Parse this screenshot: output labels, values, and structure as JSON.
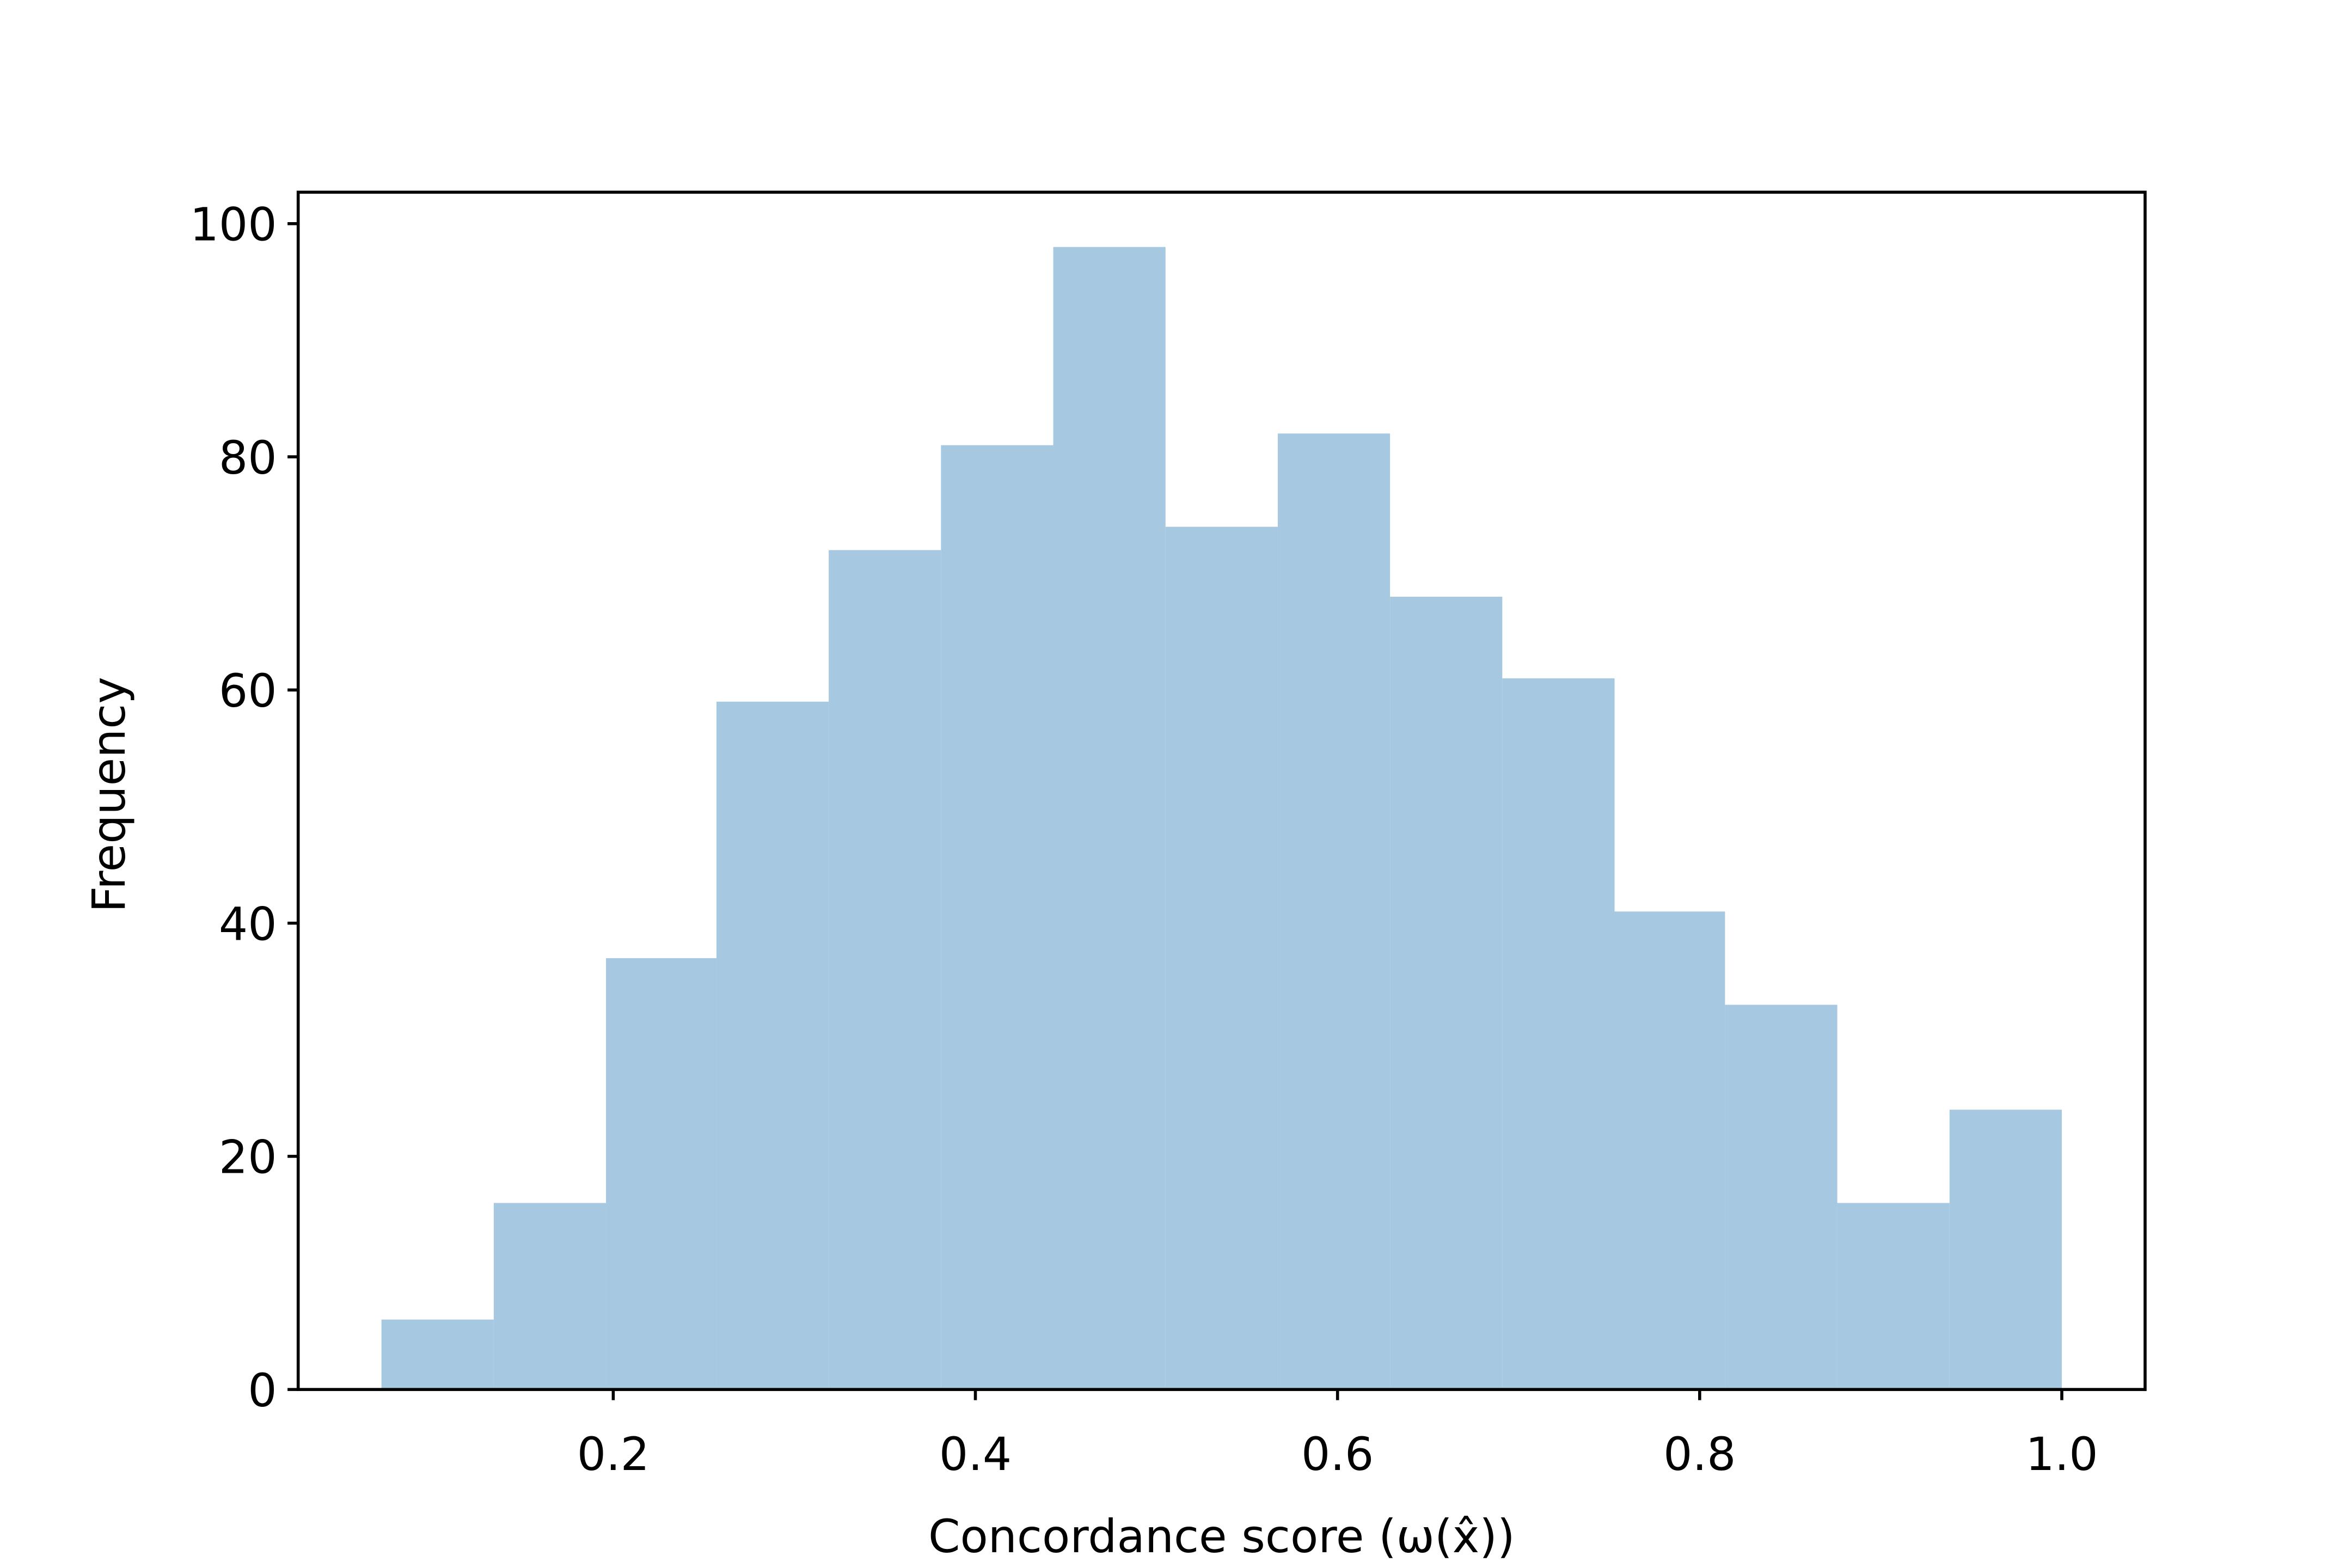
{
  "chart_data": {
    "type": "histogram",
    "x_label": "Concordance score (ω(x̂))",
    "y_label": "Frequency",
    "bins": [
      0.072,
      0.134,
      0.196,
      0.257,
      0.319,
      0.381,
      0.443,
      0.505,
      0.567,
      0.629,
      0.691,
      0.753,
      0.814,
      0.876,
      0.938,
      1.0
    ],
    "values": [
      6,
      16,
      37,
      59,
      72,
      81,
      98,
      74,
      82,
      68,
      61,
      41,
      33,
      16,
      24
    ],
    "color": "#a6c8e0",
    "xlim": [
      0.026,
      1.046
    ],
    "ylim": [
      0,
      102.7
    ],
    "xticks": [
      0.2,
      0.4,
      0.6,
      0.8,
      {
        "value": 1.0,
        "label": "1.0"
      }
    ],
    "yticks": [
      0,
      20,
      40,
      60,
      80,
      100
    ],
    "grid": false
  }
}
